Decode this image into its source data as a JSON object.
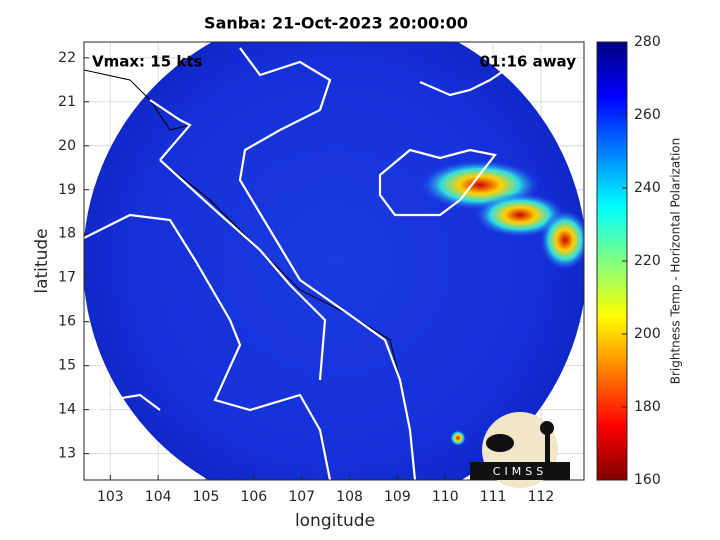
{
  "chart_data": {
    "type": "image",
    "title": "Sanba: 21-Oct-2023 20:00:00",
    "xlabel": "longitude",
    "ylabel": "latitude",
    "xlim": [
      102.45,
      112.9
    ],
    "ylim": [
      12.4,
      22.36
    ],
    "xticks": [
      103,
      104,
      105,
      106,
      107,
      108,
      109,
      110,
      111,
      112
    ],
    "yticks": [
      13,
      14,
      15,
      16,
      17,
      18,
      19,
      20,
      21,
      22
    ],
    "grid": true,
    "annotations": [
      "Vmax: 15 kts",
      "01:16 away"
    ],
    "logo": "CIMSS",
    "colorbar": {
      "label": "Brightness Temp - Horizontal Polarization",
      "lim": [
        160,
        280
      ],
      "ticks": [
        160,
        180,
        200,
        220,
        240,
        260,
        280
      ]
    }
  }
}
